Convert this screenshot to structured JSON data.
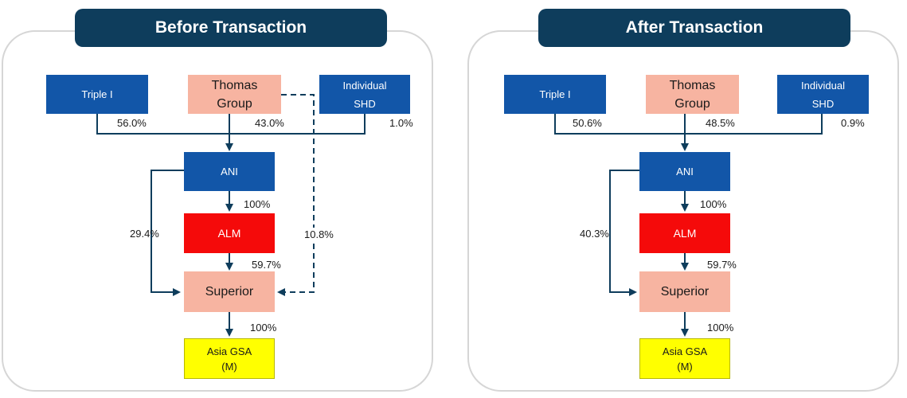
{
  "before": {
    "title": "Before Transaction",
    "entities": {
      "triple_i": "Triple I",
      "thomas_group": [
        "Thomas",
        "Group"
      ],
      "individual_shd": [
        "Individual",
        "SHD"
      ],
      "ani": "ANI",
      "alm": "ALM",
      "superior": "Superior",
      "asia_gsa": [
        "Asia GSA",
        "(M)"
      ]
    },
    "ownership": {
      "triple_i_ani": "56.0%",
      "thomas_ani": "43.0%",
      "individual_ani": "1.0%",
      "ani_alm": "100%",
      "ani_superior": "29.4%",
      "thomas_superior": "10.8%",
      "alm_superior": "59.7%",
      "superior_asia": "100%"
    }
  },
  "after": {
    "title": "After Transaction",
    "entities": {
      "triple_i": "Triple I",
      "thomas_group": [
        "Thomas",
        "Group"
      ],
      "individual_shd": [
        "Individual",
        "SHD"
      ],
      "ani": "ANI",
      "alm": "ALM",
      "superior": "Superior",
      "asia_gsa": [
        "Asia GSA",
        "(M)"
      ]
    },
    "ownership": {
      "triple_i_ani": "50.6%",
      "thomas_ani": "48.5%",
      "individual_ani": "0.9%",
      "ani_alm": "100%",
      "ani_superior": "40.3%",
      "alm_superior": "59.7%",
      "superior_asia": "100%"
    }
  },
  "colors": {
    "title_bg": "#0e3d5c",
    "blue_box": "#1256a8",
    "salmon_box": "#f7b4a1",
    "red_box": "#f50a0a",
    "yellow_box": "#ffff00",
    "connector": "#0e3d5c",
    "frame": "#d6d6d6"
  }
}
